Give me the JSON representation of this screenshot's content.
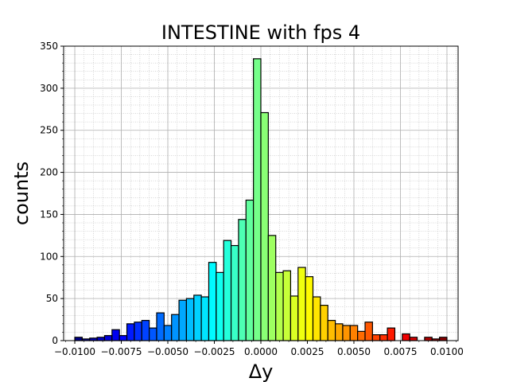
{
  "chart_data": {
    "type": "bar",
    "title": "INTESTINE with fps 4",
    "xlabel": "Δy",
    "ylabel": "counts",
    "xlim": [
      -0.0106,
      0.0106
    ],
    "ylim": [
      0,
      350
    ],
    "grid": true,
    "minor_grid": true,
    "legend": "none",
    "colormap": "jet",
    "edge_color": "#000000",
    "x_ticks": [
      -0.01,
      -0.0075,
      -0.005,
      -0.0025,
      0.0,
      0.0025,
      0.005,
      0.0075,
      0.01
    ],
    "x_tick_labels": [
      "−0.0100",
      "−0.0075",
      "−0.0050",
      "−0.0025",
      "0.0000",
      "0.0025",
      "0.0050",
      "0.0075",
      "0.0100"
    ],
    "y_ticks": [
      0,
      50,
      100,
      150,
      200,
      250,
      300,
      350
    ],
    "y_tick_labels": [
      "0",
      "50",
      "100",
      "150",
      "200",
      "250",
      "300",
      "350"
    ],
    "bin_edges_start": -0.01,
    "bin_width": 0.0004,
    "values": [
      4,
      2,
      3,
      4,
      6,
      13,
      6,
      20,
      22,
      24,
      15,
      33,
      18,
      31,
      48,
      50,
      54,
      52,
      93,
      81,
      119,
      113,
      144,
      167,
      335,
      271,
      125,
      81,
      83,
      53,
      87,
      76,
      52,
      42,
      24,
      20,
      18,
      18,
      11,
      22,
      7,
      7,
      15,
      0,
      8,
      4,
      0,
      4,
      2,
      4
    ]
  }
}
